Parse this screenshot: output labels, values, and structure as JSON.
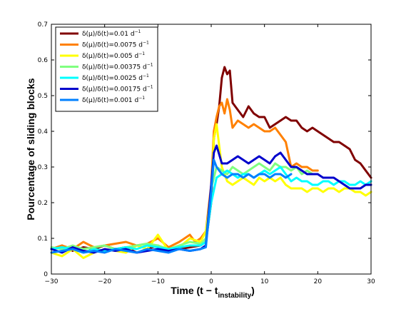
{
  "chart_data": {
    "type": "line",
    "title": "",
    "xlabel": "Time (t − t",
    "xlabel_sub": "instability",
    "xlabel_close": ")",
    "ylabel": "Pourcentage of sliding blocks",
    "xlim": [
      -30,
      30
    ],
    "ylim": [
      0,
      0.7
    ],
    "xticks": [
      -30,
      -20,
      -10,
      0,
      10,
      20,
      30
    ],
    "yticks": [
      0,
      0.1,
      0.2,
      0.3,
      0.4,
      0.5,
      0.6,
      0.7
    ],
    "xtick_labels": [
      "−30",
      "−20",
      "−10",
      "0",
      "10",
      "20",
      "30"
    ],
    "ytick_labels": [
      "0",
      "0.1",
      "0.2",
      "0.3",
      "0.4",
      "0.5",
      "0.6",
      "0.7"
    ],
    "grid": false,
    "legend_position": "top-left",
    "legend_unit": "d",
    "legend_unit_sup": "−1",
    "series": [
      {
        "name": "δ(μ)/δ(t)=0.01",
        "color": "#800000",
        "x": [
          -30,
          -28,
          -26,
          -24,
          -22,
          -20,
          -18,
          -16,
          -14,
          -12,
          -10,
          -8,
          -6,
          -4,
          -2,
          -1,
          0,
          0.5,
          1,
          1.5,
          2,
          2.5,
          3,
          3.5,
          4,
          5,
          6,
          7,
          8,
          9,
          10,
          11,
          12,
          13,
          14,
          15,
          16,
          17,
          18,
          19,
          20,
          21,
          22,
          23,
          24,
          25,
          26,
          27,
          28,
          29,
          30
        ],
        "y": [
          0.07,
          0.08,
          0.065,
          0.075,
          0.07,
          0.08,
          0.07,
          0.075,
          0.06,
          0.07,
          0.08,
          0.065,
          0.07,
          0.075,
          0.08,
          0.09,
          0.2,
          0.38,
          0.42,
          0.47,
          0.55,
          0.58,
          0.56,
          0.57,
          0.48,
          0.46,
          0.44,
          0.47,
          0.45,
          0.44,
          0.44,
          0.41,
          0.42,
          0.43,
          0.44,
          0.43,
          0.43,
          0.41,
          0.4,
          0.41,
          0.4,
          0.39,
          0.38,
          0.37,
          0.37,
          0.36,
          0.35,
          0.32,
          0.31,
          0.29,
          0.27
        ]
      },
      {
        "name": "δ(μ)/δ(t)=0.0075",
        "color": "#ff8000",
        "x": [
          -30,
          -28,
          -26,
          -24,
          -22,
          -20,
          -18,
          -16,
          -14,
          -12,
          -10,
          -8,
          -6,
          -4,
          -3,
          -2,
          -1,
          0,
          0.5,
          1,
          1.5,
          2,
          2.5,
          3,
          3.5,
          4,
          5,
          6,
          7,
          8,
          9,
          10,
          11,
          12,
          13,
          14,
          15,
          16,
          17,
          18,
          19,
          20
        ],
        "y": [
          0.07,
          0.08,
          0.07,
          0.09,
          0.075,
          0.08,
          0.085,
          0.09,
          0.08,
          0.085,
          0.1,
          0.075,
          0.09,
          0.11,
          0.09,
          0.1,
          0.12,
          0.25,
          0.4,
          0.44,
          0.47,
          0.48,
          0.45,
          0.49,
          0.46,
          0.41,
          0.43,
          0.42,
          0.41,
          0.42,
          0.41,
          0.4,
          0.4,
          0.41,
          0.39,
          0.37,
          0.3,
          0.31,
          0.3,
          0.3,
          0.29,
          0.29
        ]
      },
      {
        "name": "δ(μ)/δ(t)=0.005",
        "color": "#ffff00",
        "x": [
          -30,
          -28,
          -26,
          -24,
          -22,
          -20,
          -18,
          -16,
          -14,
          -12,
          -10,
          -8,
          -6,
          -4,
          -2,
          -1,
          0,
          0.5,
          1,
          1.5,
          2,
          3,
          4,
          5,
          6,
          7,
          8,
          9,
          10,
          11,
          12,
          13,
          14,
          15,
          16,
          17,
          18,
          19,
          20,
          21,
          22,
          23,
          24,
          25,
          26,
          27,
          28,
          29,
          30
        ],
        "y": [
          0.06,
          0.05,
          0.07,
          0.045,
          0.06,
          0.07,
          0.065,
          0.06,
          0.08,
          0.07,
          0.11,
          0.065,
          0.075,
          0.1,
          0.09,
          0.12,
          0.22,
          0.38,
          0.42,
          0.36,
          0.3,
          0.26,
          0.25,
          0.26,
          0.27,
          0.26,
          0.25,
          0.27,
          0.26,
          0.27,
          0.26,
          0.27,
          0.25,
          0.24,
          0.24,
          0.24,
          0.23,
          0.24,
          0.24,
          0.23,
          0.24,
          0.24,
          0.23,
          0.24,
          0.24,
          0.23,
          0.23,
          0.22,
          0.23
        ]
      },
      {
        "name": "δ(μ)/δ(t)=0.00375",
        "color": "#80ff80",
        "x": [
          -30,
          -28,
          -26,
          -24,
          -22,
          -20,
          -18,
          -16,
          -14,
          -12,
          -10,
          -8,
          -6,
          -4,
          -2,
          -1,
          0,
          1,
          2,
          3,
          4,
          5,
          6,
          7,
          8,
          9,
          10,
          11,
          12,
          13,
          14,
          15,
          16,
          17,
          18,
          19,
          20
        ],
        "y": [
          0.075,
          0.07,
          0.08,
          0.07,
          0.075,
          0.08,
          0.07,
          0.075,
          0.08,
          0.085,
          0.08,
          0.07,
          0.08,
          0.09,
          0.085,
          0.1,
          0.24,
          0.3,
          0.29,
          0.28,
          0.3,
          0.29,
          0.28,
          0.29,
          0.3,
          0.31,
          0.3,
          0.29,
          0.31,
          0.3,
          0.3,
          0.29,
          0.3,
          0.28,
          0.29,
          0.28,
          0.28
        ]
      },
      {
        "name": "δ(μ)/δ(t)=0.0025",
        "color": "#00ffff",
        "x": [
          -30,
          -28,
          -26,
          -24,
          -22,
          -20,
          -18,
          -16,
          -14,
          -12,
          -10,
          -8,
          -6,
          -4,
          -2,
          -1,
          0,
          1,
          2,
          3,
          4,
          5,
          6,
          7,
          8,
          9,
          10,
          11,
          12,
          13,
          14,
          15,
          16,
          17,
          18,
          19,
          20,
          21,
          22,
          23,
          24,
          25,
          26,
          27,
          28,
          29,
          30
        ],
        "y": [
          0.07,
          0.075,
          0.07,
          0.06,
          0.07,
          0.065,
          0.07,
          0.075,
          0.07,
          0.08,
          0.075,
          0.07,
          0.075,
          0.08,
          0.08,
          0.09,
          0.2,
          0.27,
          0.28,
          0.29,
          0.28,
          0.27,
          0.28,
          0.28,
          0.27,
          0.28,
          0.29,
          0.28,
          0.29,
          0.3,
          0.28,
          0.26,
          0.27,
          0.26,
          0.26,
          0.25,
          0.25,
          0.26,
          0.26,
          0.25,
          0.26,
          0.26,
          0.25,
          0.25,
          0.26,
          0.25,
          0.26
        ]
      },
      {
        "name": "δ(μ)/δ(t)=0.00175",
        "color": "#0000cc",
        "x": [
          -30,
          -28,
          -26,
          -24,
          -22,
          -20,
          -18,
          -16,
          -14,
          -12,
          -10,
          -8,
          -6,
          -4,
          -2,
          -1,
          0,
          0.5,
          1,
          2,
          3,
          4,
          5,
          6,
          7,
          8,
          9,
          10,
          11,
          12,
          13,
          14,
          15,
          16,
          17,
          18,
          19,
          20,
          21,
          22,
          23,
          24,
          25,
          26,
          27,
          28,
          29,
          30
        ],
        "y": [
          0.07,
          0.06,
          0.075,
          0.065,
          0.06,
          0.07,
          0.065,
          0.07,
          0.06,
          0.065,
          0.07,
          0.065,
          0.07,
          0.065,
          0.07,
          0.08,
          0.25,
          0.34,
          0.36,
          0.31,
          0.31,
          0.32,
          0.33,
          0.32,
          0.31,
          0.32,
          0.33,
          0.32,
          0.31,
          0.33,
          0.34,
          0.32,
          0.3,
          0.3,
          0.29,
          0.28,
          0.28,
          0.28,
          0.27,
          0.27,
          0.27,
          0.26,
          0.25,
          0.24,
          0.24,
          0.24,
          0.25,
          0.25
        ]
      },
      {
        "name": "δ(μ)/δ(t)=0.001",
        "color": "#0080ff",
        "x": [
          -30,
          -28,
          -26,
          -24,
          -22,
          -20,
          -18,
          -16,
          -14,
          -12,
          -10,
          -8,
          -6,
          -4,
          -2,
          -1,
          0,
          0.5,
          1,
          2,
          3,
          4,
          5,
          6,
          7,
          8,
          9,
          10,
          11,
          12,
          13,
          14,
          15
        ],
        "y": [
          0.06,
          0.065,
          0.07,
          0.06,
          0.065,
          0.06,
          0.07,
          0.065,
          0.06,
          0.07,
          0.065,
          0.06,
          0.07,
          0.065,
          0.07,
          0.075,
          0.23,
          0.32,
          0.3,
          0.28,
          0.27,
          0.28,
          0.28,
          0.27,
          0.28,
          0.27,
          0.28,
          0.28,
          0.27,
          0.28,
          0.28,
          0.27,
          0.28
        ]
      }
    ]
  }
}
